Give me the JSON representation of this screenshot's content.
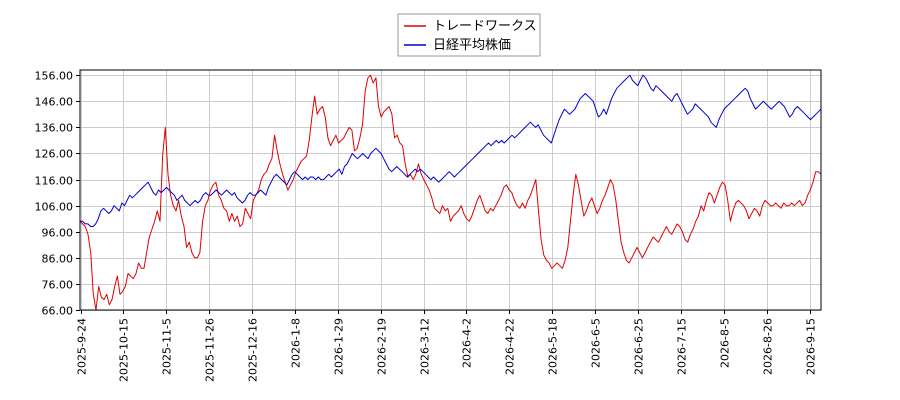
{
  "chart_data": {
    "type": "line",
    "title": "",
    "xlabel": "",
    "ylabel": "",
    "ylim": [
      66.0,
      158.0
    ],
    "y_ticks": [
      "66.00",
      "76.00",
      "86.00",
      "96.00",
      "106.00",
      "116.00",
      "126.00",
      "136.00",
      "146.00",
      "156.00"
    ],
    "x_ticks": [
      "2025-9-24",
      "2025-10-15",
      "2025-11-5",
      "2025-11-26",
      "2025-12-16",
      "2026-1-8",
      "2026-1-29",
      "2026-2-19",
      "2026-3-12",
      "2026-4-2",
      "2026-4-22",
      "2026-5-18",
      "2026-6-5",
      "2026-6-25",
      "2026-7-15",
      "2026-8-5",
      "2026-8-26",
      "2026-9-15"
    ],
    "grid": true,
    "legend_position": "top-center",
    "series": [
      {
        "name": "トレードワークス",
        "color": "#e00000",
        "values": [
          100,
          99,
          98,
          95,
          88,
          72,
          66,
          75,
          71,
          70,
          72,
          68,
          70,
          75,
          79,
          72,
          73,
          75,
          80,
          79,
          78,
          80,
          84,
          82,
          82,
          88,
          94,
          97,
          100,
          104,
          100,
          125,
          136,
          118,
          110,
          106,
          104,
          108,
          102,
          98,
          90,
          92,
          88,
          86,
          86,
          88,
          100,
          106,
          108,
          112,
          114,
          115,
          110,
          108,
          105,
          104,
          100,
          103,
          100,
          102,
          98,
          99,
          105,
          103,
          101,
          108,
          110,
          112,
          116,
          118,
          119,
          122,
          124,
          133,
          127,
          122,
          118,
          115,
          112,
          114,
          116,
          119,
          121,
          123,
          124,
          125,
          131,
          140,
          148,
          141,
          143,
          144,
          140,
          132,
          129,
          131,
          133,
          130,
          131,
          132,
          134,
          136,
          135,
          127,
          128,
          132,
          137,
          150,
          155,
          156,
          153,
          155,
          144,
          140,
          142,
          143,
          144,
          141,
          132,
          133,
          130,
          129,
          122,
          117,
          118,
          116,
          118,
          122,
          118,
          116,
          114,
          112,
          109,
          105,
          104,
          103,
          106,
          104,
          105,
          100,
          102,
          103,
          104,
          106,
          103,
          101,
          100,
          102,
          105,
          108,
          110,
          107,
          104,
          103,
          105,
          104,
          106,
          108,
          110,
          113,
          114,
          112,
          111,
          108,
          106,
          105,
          107,
          105,
          108,
          110,
          113,
          116,
          104,
          93,
          87,
          85,
          84,
          82,
          83,
          84,
          83,
          82,
          85,
          90,
          100,
          110,
          118,
          114,
          108,
          102,
          104,
          107,
          109,
          106,
          103,
          105,
          108,
          110,
          113,
          116,
          114,
          108,
          100,
          92,
          88,
          85,
          84,
          86,
          88,
          90,
          88,
          86,
          88,
          90,
          92,
          94,
          93,
          92,
          94,
          96,
          98,
          96,
          95,
          97,
          99,
          98,
          96,
          93,
          92,
          95,
          97,
          100,
          102,
          106,
          104,
          108,
          111,
          110,
          107,
          110,
          113,
          115,
          114,
          108,
          100,
          104,
          107,
          108,
          107,
          106,
          104,
          101,
          103,
          105,
          104,
          102,
          106,
          108,
          107,
          106,
          106,
          107,
          106,
          105,
          107,
          106,
          106,
          107,
          106,
          107,
          108,
          106,
          107,
          110,
          112,
          115,
          119,
          119,
          118
        ]
      },
      {
        "name": "日経平均株価",
        "color": "#0000cc",
        "values": [
          100,
          100,
          99,
          99,
          98,
          98,
          99,
          101,
          104,
          105,
          104,
          103,
          104,
          106,
          105,
          104,
          107,
          106,
          108,
          110,
          109,
          110,
          111,
          112,
          113,
          114,
          115,
          113,
          111,
          110,
          112,
          111,
          112,
          113,
          112,
          111,
          110,
          108,
          109,
          110,
          108,
          107,
          106,
          107,
          108,
          107,
          108,
          110,
          111,
          110,
          110,
          111,
          112,
          111,
          110,
          111,
          112,
          111,
          110,
          111,
          109,
          108,
          107,
          108,
          110,
          111,
          110,
          110,
          111,
          112,
          111,
          110,
          113,
          115,
          117,
          118,
          117,
          116,
          115,
          114,
          116,
          118,
          119,
          118,
          117,
          116,
          117,
          116,
          117,
          117,
          116,
          117,
          116,
          116,
          117,
          118,
          117,
          118,
          119,
          120,
          118,
          121,
          122,
          124,
          126,
          125,
          124,
          125,
          126,
          125,
          124,
          126,
          127,
          128,
          127,
          126,
          124,
          122,
          120,
          119,
          120,
          121,
          120,
          119,
          118,
          117,
          118,
          119,
          120,
          119,
          120,
          119,
          118,
          117,
          116,
          117,
          116,
          115,
          116,
          117,
          118,
          119,
          118,
          117,
          118,
          119,
          120,
          121,
          122,
          123,
          124,
          125,
          126,
          127,
          128,
          129,
          130,
          129,
          130,
          131,
          130,
          131,
          130,
          131,
          132,
          133,
          132,
          133,
          134,
          135,
          136,
          137,
          138,
          137,
          136,
          137,
          135,
          133,
          132,
          131,
          130,
          133,
          136,
          139,
          141,
          143,
          142,
          141,
          142,
          143,
          145,
          147,
          148,
          149,
          148,
          147,
          146,
          143,
          140,
          141,
          143,
          141,
          144,
          147,
          149,
          151,
          152,
          153,
          154,
          155,
          156,
          154,
          153,
          152,
          154,
          156,
          155,
          153,
          151,
          150,
          152,
          151,
          150,
          149,
          148,
          147,
          146,
          148,
          149,
          147,
          145,
          143,
          141,
          142,
          143,
          145,
          144,
          143,
          142,
          141,
          140,
          138,
          137,
          136,
          139,
          141,
          143,
          144,
          145,
          146,
          147,
          148,
          149,
          150,
          151,
          150,
          147,
          145,
          143,
          144,
          145,
          146,
          145,
          144,
          143,
          144,
          145,
          146,
          145,
          144,
          142,
          140,
          141,
          143,
          144,
          143,
          142,
          141,
          140,
          139,
          140,
          141,
          142,
          143
        ]
      }
    ]
  }
}
